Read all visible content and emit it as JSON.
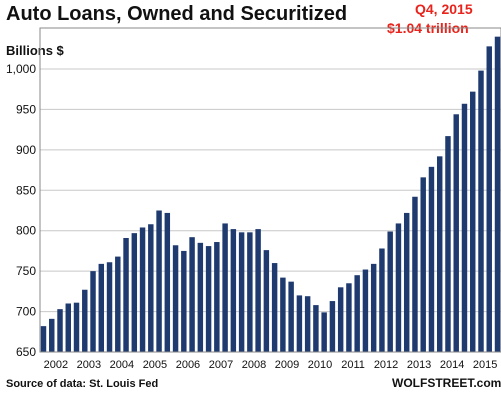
{
  "chart_data": {
    "type": "bar",
    "title": "Auto Loans, Owned and Securitized",
    "ylabel": "Billions $",
    "xlabel": "",
    "ylim": [
      650,
      1040
    ],
    "yticks": [
      650,
      700,
      750,
      800,
      850,
      900,
      950,
      1000
    ],
    "ytick_labels": [
      "650",
      "700",
      "750",
      "800",
      "850",
      "900",
      "950",
      "1,000"
    ],
    "xtick_labels": [
      "2002",
      "2003",
      "2004",
      "2005",
      "2006",
      "2007",
      "2008",
      "2009",
      "2010",
      "2011",
      "2012",
      "2013",
      "2014",
      "2015"
    ],
    "grid": true,
    "bar_color": "#1f3a6e",
    "annotation": {
      "line1": "Q4, 2015",
      "line2": "$1.04 trillion",
      "color": "#e8231b"
    },
    "source": "Source of data: St. Louis Fed",
    "brand": "WOLFSTREET.com",
    "values": [
      682,
      691,
      703,
      710,
      711,
      727,
      750,
      759,
      761,
      768,
      791,
      797,
      804,
      808,
      825,
      822,
      782,
      775,
      792,
      785,
      781,
      786,
      809,
      802,
      798,
      798,
      802,
      776,
      760,
      742,
      737,
      720,
      719,
      708,
      699,
      713,
      730,
      735,
      745,
      752,
      759,
      778,
      799,
      809,
      822,
      842,
      866,
      879,
      892,
      917,
      944,
      957,
      972,
      998,
      1028,
      1040
    ]
  }
}
